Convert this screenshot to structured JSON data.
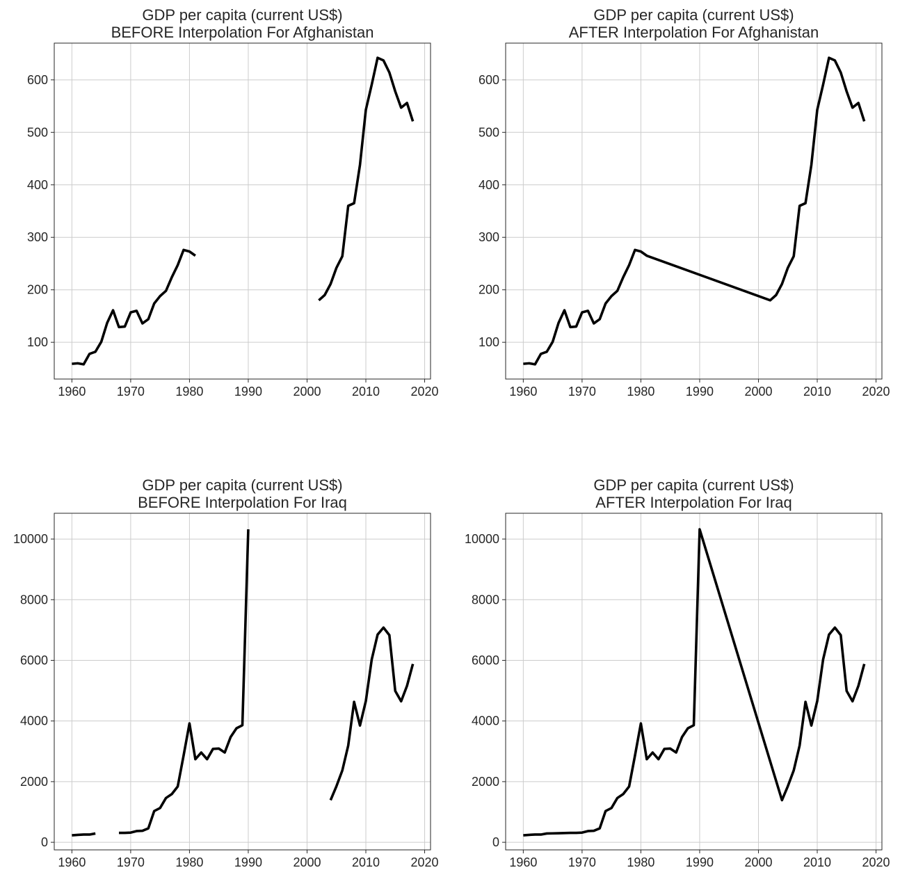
{
  "chart_data": [
    {
      "type": "line",
      "title": "GDP per capita (current US$)",
      "subtitle": "BEFORE Interpolation For Afghanistan",
      "xlim": [
        1957,
        2021
      ],
      "ylim": [
        30,
        670
      ],
      "xticks": [
        1960,
        1970,
        1980,
        1990,
        2000,
        2010,
        2020
      ],
      "yticks": [
        100,
        200,
        300,
        400,
        500,
        600
      ],
      "grid": true,
      "color": "#000000",
      "x": [
        1960,
        1961,
        1962,
        1963,
        1964,
        1965,
        1966,
        1967,
        1968,
        1969,
        1970,
        1971,
        1972,
        1973,
        1974,
        1975,
        1976,
        1977,
        1978,
        1979,
        1980,
        1981,
        1982,
        1983,
        1984,
        1985,
        1986,
        1987,
        1988,
        1989,
        1990,
        1991,
        1992,
        1993,
        1994,
        1995,
        1996,
        1997,
        1998,
        1999,
        2000,
        2001,
        2002,
        2003,
        2004,
        2005,
        2006,
        2007,
        2008,
        2009,
        2010,
        2011,
        2012,
        2013,
        2014,
        2015,
        2016,
        2017,
        2018
      ],
      "y": [
        59,
        60,
        58,
        78,
        82,
        101,
        137,
        161,
        129,
        130,
        157,
        160,
        136,
        144,
        174,
        188,
        198,
        224,
        247,
        276,
        273,
        265,
        null,
        null,
        null,
        null,
        null,
        null,
        null,
        null,
        null,
        null,
        null,
        null,
        null,
        null,
        null,
        null,
        null,
        null,
        null,
        null,
        180,
        190,
        211,
        242,
        264,
        360,
        365,
        438,
        543,
        591,
        642,
        637,
        614,
        578,
        547,
        556,
        521
      ]
    },
    {
      "type": "line",
      "title": "GDP per capita (current US$)",
      "subtitle": "AFTER Interpolation For Afghanistan",
      "xlim": [
        1957,
        2021
      ],
      "ylim": [
        30,
        670
      ],
      "xticks": [
        1960,
        1970,
        1980,
        1990,
        2000,
        2010,
        2020
      ],
      "yticks": [
        100,
        200,
        300,
        400,
        500,
        600
      ],
      "grid": true,
      "color": "#000000",
      "x": [
        1960,
        1961,
        1962,
        1963,
        1964,
        1965,
        1966,
        1967,
        1968,
        1969,
        1970,
        1971,
        1972,
        1973,
        1974,
        1975,
        1976,
        1977,
        1978,
        1979,
        1980,
        1981,
        2002,
        2003,
        2004,
        2005,
        2006,
        2007,
        2008,
        2009,
        2010,
        2011,
        2012,
        2013,
        2014,
        2015,
        2016,
        2017,
        2018
      ],
      "y": [
        59,
        60,
        58,
        78,
        82,
        101,
        137,
        161,
        129,
        130,
        157,
        160,
        136,
        144,
        174,
        188,
        198,
        224,
        247,
        276,
        273,
        265,
        180,
        190,
        211,
        242,
        264,
        360,
        365,
        438,
        543,
        591,
        642,
        637,
        614,
        578,
        547,
        556,
        521
      ]
    },
    {
      "type": "line",
      "title": "GDP per capita (current US$)",
      "subtitle": "BEFORE Interpolation For Iraq",
      "xlim": [
        1957,
        2021
      ],
      "ylim": [
        -250,
        10850
      ],
      "xticks": [
        1960,
        1970,
        1980,
        1990,
        2000,
        2010,
        2020
      ],
      "yticks": [
        0,
        2000,
        4000,
        6000,
        8000,
        10000
      ],
      "grid": true,
      "color": "#000000",
      "x": [
        1960,
        1961,
        1962,
        1963,
        1964,
        1965,
        1966,
        1967,
        1968,
        1969,
        1970,
        1971,
        1972,
        1973,
        1974,
        1975,
        1976,
        1977,
        1978,
        1979,
        1980,
        1981,
        1982,
        1983,
        1984,
        1985,
        1986,
        1987,
        1988,
        1989,
        1990,
        1991,
        1992,
        1993,
        1994,
        1995,
        1996,
        1997,
        1998,
        1999,
        2000,
        2001,
        2002,
        2003,
        2004,
        2005,
        2006,
        2007,
        2008,
        2009,
        2010,
        2011,
        2012,
        2013,
        2014,
        2015,
        2016,
        2017,
        2018
      ],
      "y": [
        230,
        245,
        255,
        255,
        290,
        null,
        null,
        null,
        310,
        310,
        320,
        370,
        380,
        460,
        1030,
        1130,
        1460,
        1590,
        1840,
        2860,
        3920,
        2740,
        2960,
        2740,
        3080,
        3090,
        2960,
        3470,
        3760,
        3860,
        10320,
        null,
        null,
        null,
        null,
        null,
        null,
        null,
        null,
        null,
        null,
        null,
        null,
        null,
        1390,
        1850,
        2370,
        3190,
        4630,
        3850,
        4660,
        6030,
        6850,
        7080,
        6830,
        4990,
        4650,
        5160,
        5880
      ]
    },
    {
      "type": "line",
      "title": "GDP per capita (current US$)",
      "subtitle": "AFTER Interpolation For Iraq",
      "xlim": [
        1957,
        2021
      ],
      "ylim": [
        -250,
        10850
      ],
      "xticks": [
        1960,
        1970,
        1980,
        1990,
        2000,
        2010,
        2020
      ],
      "yticks": [
        0,
        2000,
        4000,
        6000,
        8000,
        10000
      ],
      "grid": true,
      "color": "#000000",
      "x": [
        1960,
        1961,
        1962,
        1963,
        1964,
        1965,
        1966,
        1967,
        1968,
        1969,
        1970,
        1971,
        1972,
        1973,
        1974,
        1975,
        1976,
        1977,
        1978,
        1979,
        1980,
        1981,
        1982,
        1983,
        1984,
        1985,
        1986,
        1987,
        1988,
        1989,
        1990,
        2004,
        2005,
        2006,
        2007,
        2008,
        2009,
        2010,
        2011,
        2012,
        2013,
        2014,
        2015,
        2016,
        2017,
        2018
      ],
      "y": [
        230,
        245,
        255,
        255,
        290,
        295,
        300,
        305,
        310,
        310,
        320,
        370,
        380,
        460,
        1030,
        1130,
        1460,
        1590,
        1840,
        2860,
        3920,
        2740,
        2960,
        2740,
        3080,
        3090,
        2960,
        3470,
        3760,
        3860,
        10320,
        1390,
        1850,
        2370,
        3190,
        4630,
        3850,
        4660,
        6030,
        6850,
        7080,
        6830,
        4990,
        4650,
        5160,
        5880
      ]
    }
  ]
}
